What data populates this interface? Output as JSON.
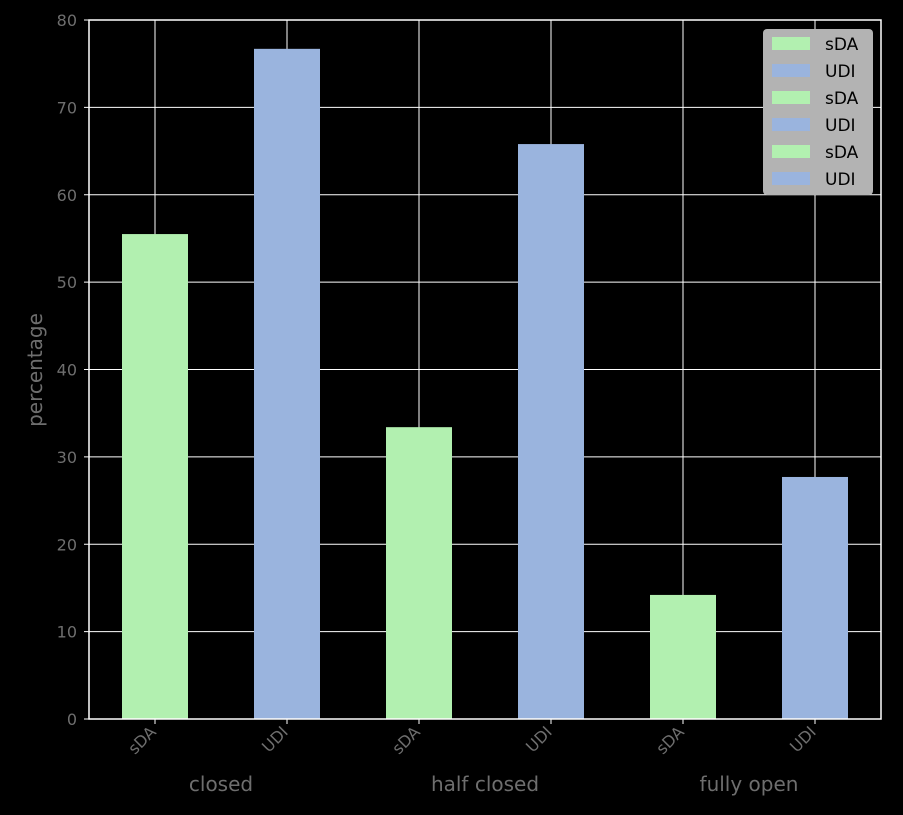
{
  "chart_data": {
    "type": "bar",
    "ylabel": "percentage",
    "ylim": [
      0,
      80
    ],
    "yticks": [
      0,
      10,
      20,
      30,
      40,
      50,
      60,
      70,
      80
    ],
    "grid": true,
    "legend_position": "top-right",
    "groups": [
      "closed",
      "half closed",
      "fully open"
    ],
    "categories": [
      "sDA",
      "UDI",
      "sDA",
      "UDI",
      "sDA",
      "UDI"
    ],
    "values": [
      55.5,
      76.7,
      33.4,
      65.8,
      14.2,
      27.7
    ],
    "bar_colors": [
      "#b2f0b0",
      "#9ab4de",
      "#b2f0b0",
      "#9ab4de",
      "#b2f0b0",
      "#9ab4de"
    ],
    "legend": [
      {
        "label": "sDA",
        "color": "#b2f0b0"
      },
      {
        "label": "UDI",
        "color": "#9ab4de"
      },
      {
        "label": "sDA",
        "color": "#b2f0b0"
      },
      {
        "label": "UDI",
        "color": "#9ab4de"
      },
      {
        "label": "sDA",
        "color": "#b2f0b0"
      },
      {
        "label": "UDI",
        "color": "#9ab4de"
      }
    ],
    "colors": {
      "background": "#000000",
      "grid": "#ffffff",
      "text": "#6e6e6e",
      "legend_bg": "#b3b3b3"
    }
  }
}
